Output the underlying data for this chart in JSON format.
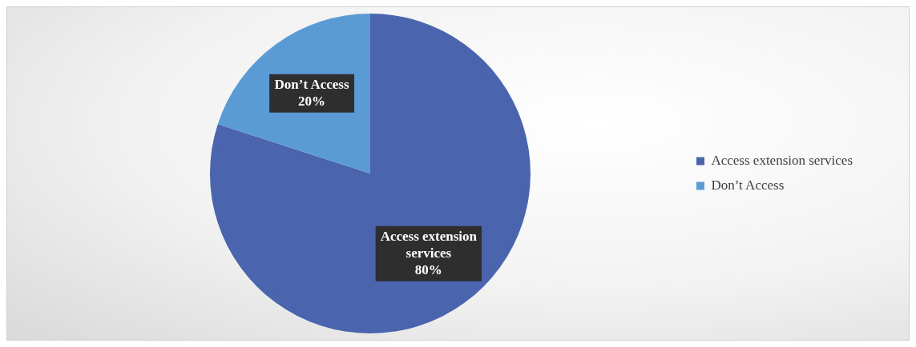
{
  "chart_data": {
    "type": "pie",
    "categories": [
      "Access extension services",
      "Don’t Access"
    ],
    "values": [
      80,
      20
    ],
    "colors": [
      "#4a64ad",
      "#5b9bd5"
    ],
    "value_labels": [
      "80%",
      "20%"
    ],
    "legend": "right"
  }
}
